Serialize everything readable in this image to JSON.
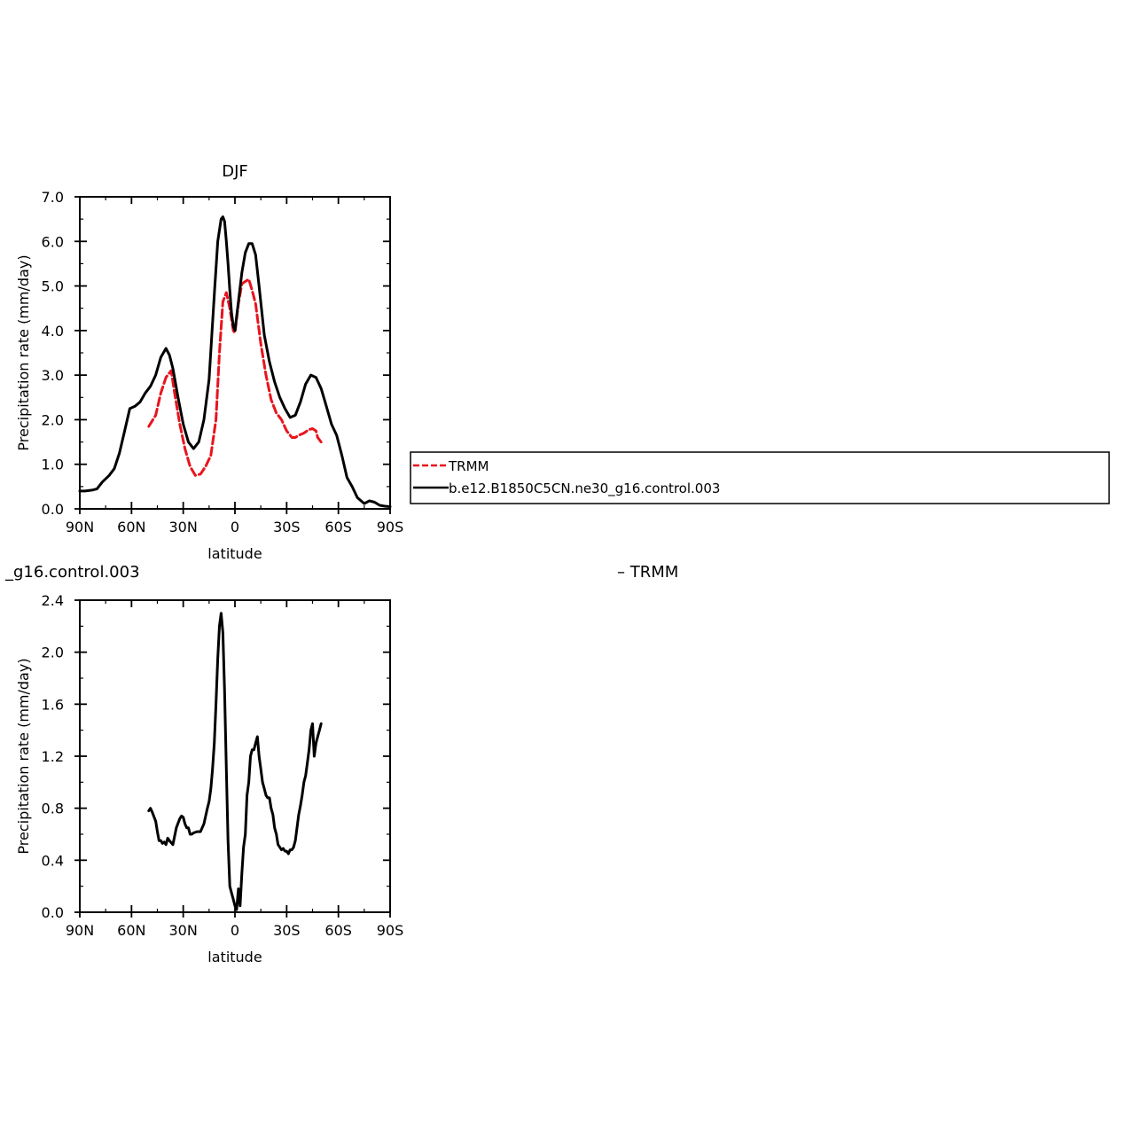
{
  "chart_data": [
    {
      "type": "line",
      "title": "DJF",
      "xlabel": "latitude",
      "ylabel": "Precipitation rate (mm/day)",
      "xlim": [
        90,
        -90
      ],
      "ylim": [
        0.0,
        7.0
      ],
      "x_ticks": [
        90,
        60,
        30,
        0,
        -30,
        -60,
        -90
      ],
      "x_tick_labels": [
        "90N",
        "60N",
        "30N",
        "0",
        "30S",
        "60S",
        "90S"
      ],
      "y_ticks": [
        0,
        1,
        2,
        3,
        4,
        5,
        6,
        7
      ],
      "y_tick_labels": [
        "0.0",
        "1.0",
        "2.0",
        "3.0",
        "4.0",
        "5.0",
        "6.0",
        "7.0"
      ],
      "legend_position": "right",
      "series": [
        {
          "name": "TRMM",
          "color": "#e8141e",
          "dashed": true,
          "x": [
            50,
            46,
            43,
            40,
            37,
            35,
            32,
            29,
            26,
            23,
            20,
            17,
            14,
            11,
            9,
            7,
            5,
            3,
            1,
            0,
            -2,
            -4,
            -6,
            -8,
            -10,
            -12,
            -15,
            -18,
            -21,
            -24,
            -27,
            -30,
            -33,
            -35,
            -37,
            -40,
            -43,
            -45,
            -47,
            -48,
            -50
          ],
          "y": [
            1.85,
            2.1,
            2.6,
            2.95,
            3.1,
            2.6,
            1.9,
            1.35,
            0.95,
            0.75,
            0.78,
            0.95,
            1.2,
            2.0,
            3.5,
            4.65,
            4.85,
            4.5,
            4.0,
            3.95,
            4.6,
            5.05,
            5.1,
            5.15,
            4.9,
            4.6,
            3.7,
            3.0,
            2.45,
            2.15,
            2.0,
            1.75,
            1.6,
            1.6,
            1.65,
            1.7,
            1.78,
            1.8,
            1.75,
            1.6,
            1.5
          ]
        },
        {
          "name": "b.e12.B1850C5CN.ne30_g16.control.003",
          "color": "#000000",
          "dashed": false,
          "x": [
            90,
            87,
            83,
            80,
            77,
            73,
            70,
            67,
            64,
            61,
            58,
            55,
            52,
            49,
            46,
            43,
            40,
            38,
            36,
            33,
            30,
            27,
            24,
            21,
            18,
            15,
            12,
            10,
            8,
            7,
            6,
            5,
            4,
            3,
            2,
            1,
            0,
            -2,
            -4,
            -6,
            -8,
            -10,
            -12,
            -14,
            -17,
            -20,
            -23,
            -26,
            -29,
            -32,
            -35,
            -38,
            -41,
            -44,
            -47,
            -50,
            -53,
            -56,
            -59,
            -62,
            -65,
            -68,
            -71,
            -75,
            -78,
            -81,
            -84,
            -87,
            -90
          ],
          "y": [
            0.4,
            0.4,
            0.42,
            0.45,
            0.6,
            0.75,
            0.9,
            1.25,
            1.75,
            2.25,
            2.3,
            2.4,
            2.6,
            2.75,
            3.0,
            3.4,
            3.6,
            3.45,
            3.15,
            2.5,
            1.9,
            1.5,
            1.35,
            1.5,
            2.0,
            2.9,
            4.8,
            6.0,
            6.5,
            6.55,
            6.45,
            6.0,
            5.5,
            4.9,
            4.4,
            4.1,
            4.0,
            4.65,
            5.3,
            5.75,
            5.95,
            5.95,
            5.7,
            5.0,
            3.9,
            3.3,
            2.85,
            2.5,
            2.25,
            2.05,
            2.1,
            2.4,
            2.8,
            3.0,
            2.95,
            2.7,
            2.3,
            1.9,
            1.65,
            1.2,
            0.7,
            0.5,
            0.25,
            0.12,
            0.18,
            0.15,
            0.08,
            0.06,
            0.05
          ]
        }
      ]
    },
    {
      "type": "line",
      "title": "_g16.control.003",
      "title_right": "– TRMM",
      "xlabel": "latitude",
      "ylabel": "Precipitation rate (mm/day)",
      "xlim": [
        90,
        -90
      ],
      "ylim": [
        0.0,
        2.4
      ],
      "x_ticks": [
        90,
        60,
        30,
        0,
        -30,
        -60,
        -90
      ],
      "x_tick_labels": [
        "90N",
        "60N",
        "30N",
        "0",
        "30S",
        "60S",
        "90S"
      ],
      "y_ticks": [
        0.0,
        0.4,
        0.8,
        1.2,
        1.6,
        2.0,
        2.4
      ],
      "y_tick_labels": [
        "0.0",
        "0.4",
        "0.8",
        "1.2",
        "1.6",
        "2.0",
        "2.4"
      ],
      "series": [
        {
          "color": "#000000",
          "dashed": false,
          "x": [
            50,
            49,
            48,
            46,
            45,
            44,
            43,
            42,
            41,
            40,
            39,
            38,
            36,
            34,
            32,
            31,
            30,
            29,
            28,
            27,
            26,
            25,
            24,
            22,
            20,
            18,
            16,
            15,
            14,
            13,
            12,
            11,
            10,
            9,
            8,
            7,
            6,
            5,
            4,
            3,
            2,
            1,
            0,
            -1,
            -2,
            -3,
            -4,
            -5,
            -6,
            -7,
            -8,
            -9,
            -10,
            -11,
            -12,
            -13,
            -14,
            -15,
            -16,
            -17,
            -18,
            -19,
            -20,
            -21,
            -22,
            -23,
            -24,
            -25,
            -26,
            -27,
            -28,
            -29,
            -30,
            -31,
            -32,
            -33,
            -34,
            -35,
            -36,
            -37,
            -38,
            -39,
            -40,
            -41,
            -42,
            -43,
            -44,
            -45,
            -46,
            -47,
            -48,
            -49,
            -50
          ],
          "y": [
            0.78,
            0.8,
            0.77,
            0.7,
            0.62,
            0.55,
            0.55,
            0.53,
            0.54,
            0.52,
            0.57,
            0.55,
            0.52,
            0.65,
            0.72,
            0.74,
            0.73,
            0.68,
            0.65,
            0.65,
            0.6,
            0.6,
            0.61,
            0.62,
            0.62,
            0.68,
            0.8,
            0.85,
            0.95,
            1.1,
            1.3,
            1.6,
            1.95,
            2.2,
            2.3,
            2.15,
            1.7,
            1.1,
            0.55,
            0.2,
            0.15,
            0.1,
            0.05,
            0.02,
            0.18,
            0.05,
            0.3,
            0.5,
            0.6,
            0.9,
            1.0,
            1.2,
            1.25,
            1.25,
            1.3,
            1.35,
            1.2,
            1.1,
            1.0,
            0.95,
            0.9,
            0.88,
            0.88,
            0.8,
            0.75,
            0.65,
            0.6,
            0.52,
            0.5,
            0.48,
            0.49,
            0.47,
            0.47,
            0.45,
            0.48,
            0.48,
            0.5,
            0.55,
            0.65,
            0.75,
            0.82,
            0.9,
            1.0,
            1.05,
            1.15,
            1.25,
            1.4,
            1.45,
            1.2,
            1.3,
            1.35,
            1.4,
            1.45
          ]
        }
      ]
    }
  ]
}
